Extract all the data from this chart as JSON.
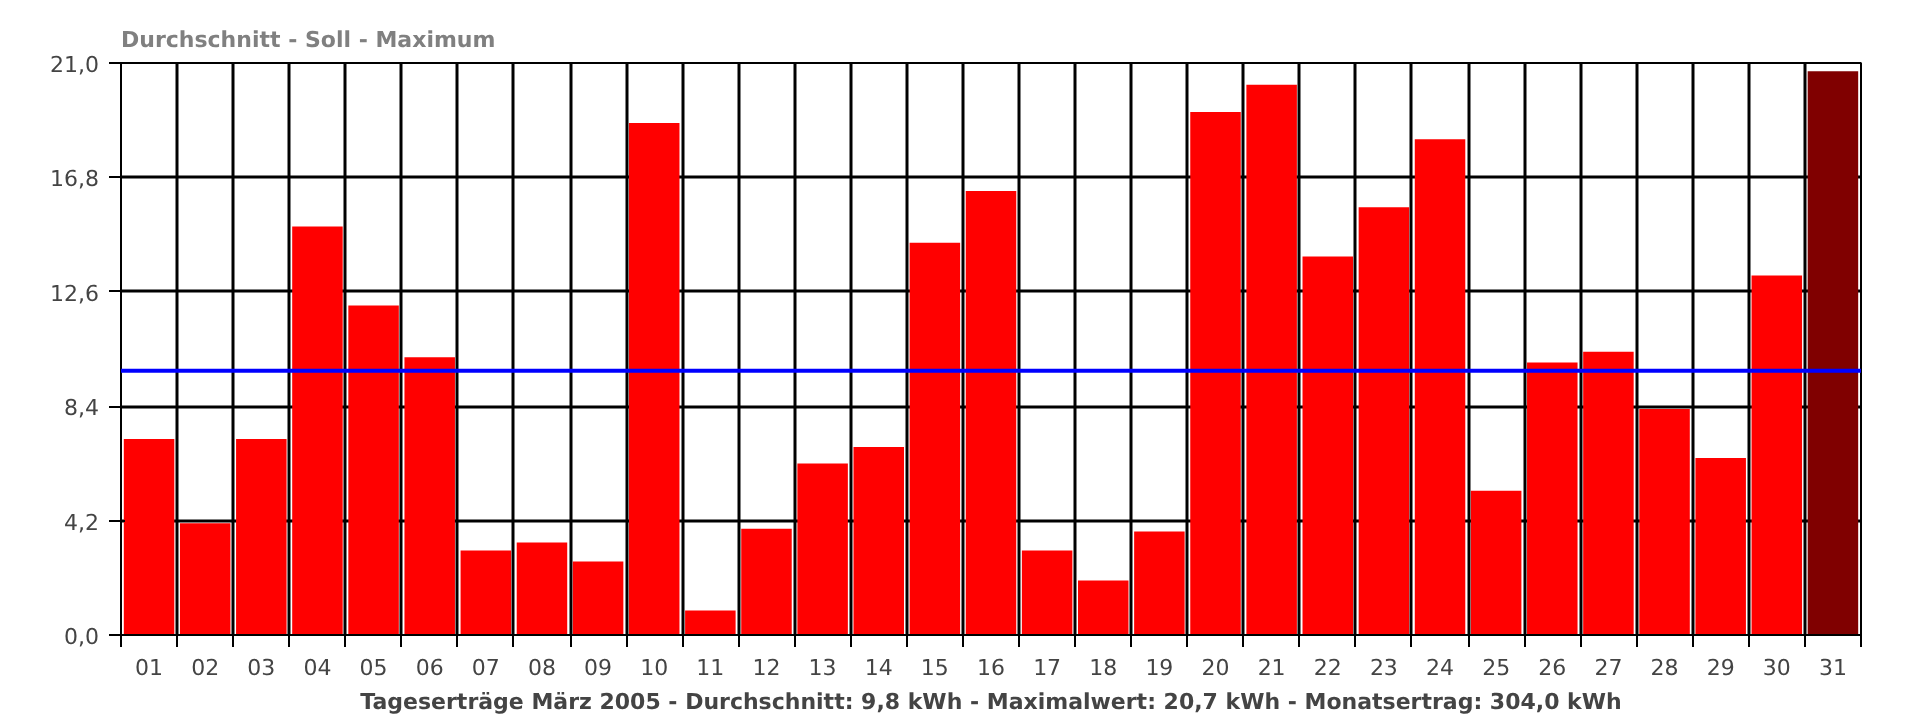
{
  "chart_data": {
    "type": "bar",
    "title": "Durchschnitt - Soll - Maximum",
    "xlabel": "Tageserträge März 2005 - Durchschnitt: 9,8 kWh - Maximalwert: 20,7 kWh - Monatsertrag: 304,0 kWh",
    "categories": [
      "01",
      "02",
      "03",
      "04",
      "05",
      "06",
      "07",
      "08",
      "09",
      "10",
      "11",
      "12",
      "13",
      "14",
      "15",
      "16",
      "17",
      "18",
      "19",
      "20",
      "21",
      "22",
      "23",
      "24",
      "25",
      "26",
      "27",
      "28",
      "29",
      "30",
      "31"
    ],
    "values": [
      7.2,
      4.1,
      7.2,
      15.0,
      12.1,
      10.2,
      3.1,
      3.4,
      2.7,
      18.8,
      0.9,
      3.9,
      6.3,
      6.9,
      14.4,
      16.3,
      3.1,
      2.0,
      3.8,
      19.2,
      20.2,
      13.9,
      15.7,
      18.2,
      5.3,
      10.0,
      10.4,
      8.3,
      6.5,
      13.2,
      20.7
    ],
    "colors": [
      "#ff0000",
      "#ff0000",
      "#ff0000",
      "#ff0000",
      "#ff0000",
      "#ff0000",
      "#ff0000",
      "#ff0000",
      "#ff0000",
      "#ff0000",
      "#ff0000",
      "#ff0000",
      "#ff0000",
      "#ff0000",
      "#ff0000",
      "#ff0000",
      "#ff0000",
      "#ff0000",
      "#ff0000",
      "#ff0000",
      "#ff0000",
      "#ff0000",
      "#ff0000",
      "#ff0000",
      "#ff0000",
      "#ff0000",
      "#ff0000",
      "#ff0000",
      "#ff0000",
      "#ff0000",
      "#800000"
    ],
    "ylim": [
      0,
      21
    ],
    "yticks": [
      {
        "value": 0,
        "label": "0,0"
      },
      {
        "value": 4.2,
        "label": "4,2"
      },
      {
        "value": 8.4,
        "label": "8,4"
      },
      {
        "value": 12.6,
        "label": "12,6"
      },
      {
        "value": 16.8,
        "label": "16,8"
      },
      {
        "value": 21,
        "label": "21,0"
      }
    ],
    "ref_lines": [
      {
        "axis": "y",
        "value": 9.7,
        "color": "#0000ff"
      }
    ],
    "grid": true
  }
}
